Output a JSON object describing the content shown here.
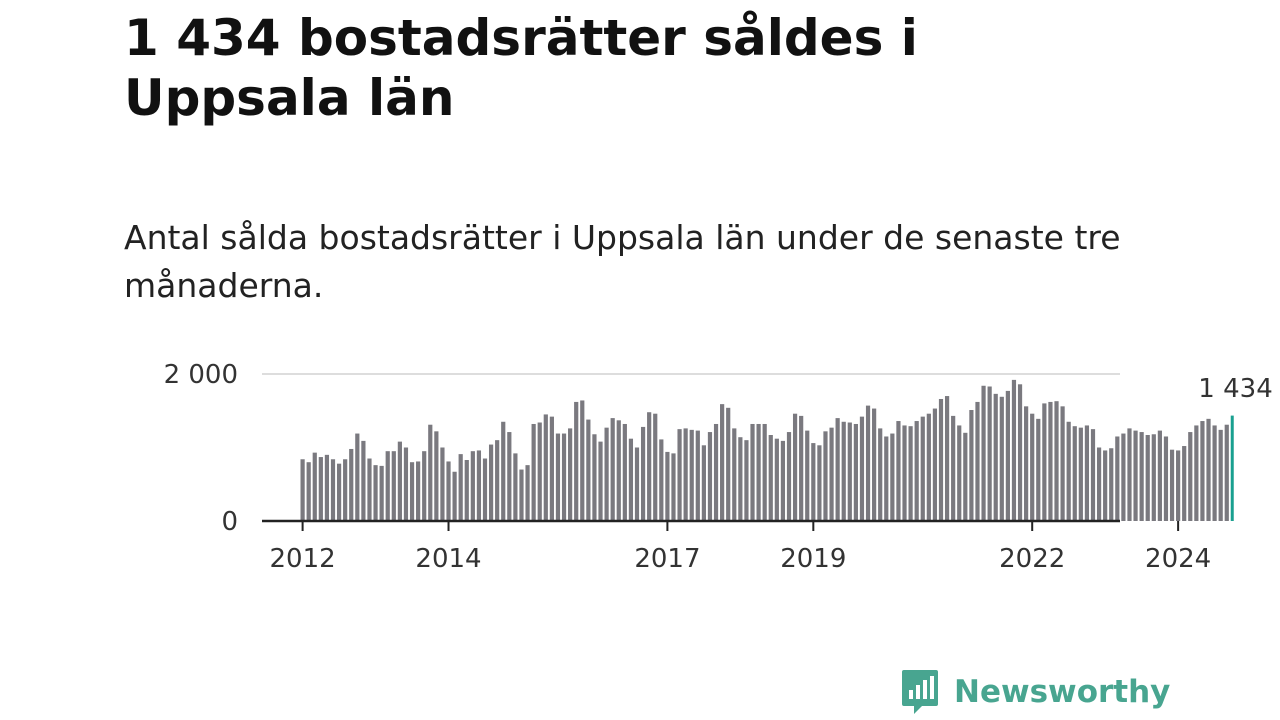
{
  "title": "1 434 bostadsrätter såldes i Uppsala län",
  "subtitle": "Antal sålda bostadsrätter i Uppsala län under de senaste tre månaderna.",
  "logo": {
    "text": "Newsworthy",
    "icon": "newsworthy-chart-bubble-icon",
    "color": "#48a590"
  },
  "colors": {
    "bars": "#7a797f",
    "highlight": "#1aa090",
    "axis": "#222222",
    "grid": "#dddddd"
  },
  "chart_data": {
    "type": "bar",
    "title": "1 434 bostadsrätter såldes i Uppsala län",
    "subtitle": "Antal sålda bostadsrätter i Uppsala län under de senaste tre månaderna.",
    "xlabel": "",
    "ylabel": "",
    "ylim": [
      0,
      2000
    ],
    "yticks": [
      0,
      2000
    ],
    "ytick_labels": [
      "0",
      "2 000"
    ],
    "x_ticks": [
      {
        "label": "2012",
        "index": 0
      },
      {
        "label": "2014",
        "index": 24
      },
      {
        "label": "2017",
        "index": 60
      },
      {
        "label": "2019",
        "index": 84
      },
      {
        "label": "2022",
        "index": 120
      },
      {
        "label": "2024",
        "index": 144
      }
    ],
    "x_start": "2012-01",
    "x_end": "2024-10",
    "grid": true,
    "highlight_label": "1 434",
    "values": [
      840,
      800,
      930,
      870,
      900,
      840,
      780,
      840,
      980,
      1190,
      1090,
      850,
      760,
      750,
      950,
      950,
      1080,
      1000,
      800,
      810,
      950,
      1310,
      1220,
      1000,
      810,
      670,
      910,
      830,
      950,
      960,
      850,
      1040,
      1100,
      1350,
      1210,
      920,
      700,
      760,
      1320,
      1340,
      1450,
      1420,
      1190,
      1190,
      1260,
      1620,
      1640,
      1380,
      1180,
      1080,
      1270,
      1400,
      1370,
      1320,
      1120,
      1000,
      1280,
      1480,
      1460,
      1110,
      940,
      920,
      1250,
      1260,
      1240,
      1230,
      1030,
      1210,
      1320,
      1590,
      1540,
      1260,
      1140,
      1100,
      1320,
      1320,
      1320,
      1170,
      1120,
      1090,
      1210,
      1460,
      1430,
      1230,
      1060,
      1030,
      1220,
      1270,
      1400,
      1350,
      1340,
      1320,
      1420,
      1570,
      1530,
      1260,
      1150,
      1190,
      1360,
      1300,
      1290,
      1360,
      1420,
      1460,
      1530,
      1660,
      1700,
      1430,
      1300,
      1200,
      1510,
      1620,
      1840,
      1830,
      1730,
      1690,
      1770,
      1920,
      1860,
      1560,
      1460,
      1390,
      1600,
      1620,
      1630,
      1560,
      1350,
      1290,
      1270,
      1300,
      1250,
      1000,
      960,
      990,
      1150,
      1190,
      1260,
      1230,
      1210,
      1170,
      1180,
      1230,
      1150,
      970,
      960,
      1020,
      1210,
      1300,
      1360,
      1390,
      1300,
      1240,
      1310,
      1434
    ]
  }
}
